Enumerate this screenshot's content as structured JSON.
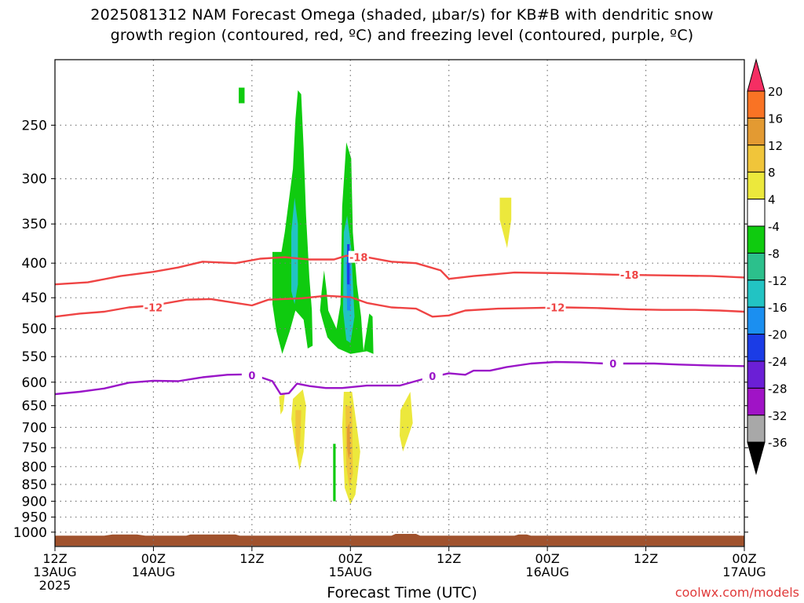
{
  "title_line1": "2025081312 NAM Forecast Omega (shaded, μbar/s) for KB#B with dendritic snow",
  "title_line2": "growth region (contoured, red, ºC) and freezing level (contoured, purple, ºC)",
  "credit": "coolwx.com/models",
  "chart_data": {
    "type": "time-height cross section",
    "title": "2025081312 NAM Forecast Omega (shaded, μbar/s) for KB#B with dendritic snow growth region (contoured, red, ºC) and freezing level (contoured, purple, ºC)",
    "xlabel": "Forecast Time (UTC)",
    "ylabel": "",
    "x_unit": "hours from 2025-08-13 12Z",
    "xlim": [
      0,
      84
    ],
    "ylim": [
      1050,
      200
    ],
    "y_scale": "log-pressure",
    "grid": true,
    "x_ticks": [
      {
        "x": 0,
        "l1": "12Z",
        "l2": "13AUG",
        "l3": "2025"
      },
      {
        "x": 12,
        "l1": "00Z",
        "l2": "14AUG",
        "l3": ""
      },
      {
        "x": 24,
        "l1": "12Z",
        "l2": "",
        "l3": ""
      },
      {
        "x": 36,
        "l1": "00Z",
        "l2": "15AUG",
        "l3": ""
      },
      {
        "x": 48,
        "l1": "12Z",
        "l2": "",
        "l3": ""
      },
      {
        "x": 60,
        "l1": "00Z",
        "l2": "16AUG",
        "l3": ""
      },
      {
        "x": 72,
        "l1": "12Z",
        "l2": "",
        "l3": ""
      },
      {
        "x": 84,
        "l1": "00Z",
        "l2": "17AUG",
        "l3": ""
      }
    ],
    "y_ticks": [
      250,
      300,
      350,
      400,
      450,
      500,
      550,
      600,
      650,
      700,
      750,
      800,
      850,
      900,
      950,
      1000
    ],
    "colorbar": {
      "labels": [
        20,
        16,
        12,
        8,
        4,
        -4,
        -8,
        -12,
        -16,
        -20,
        -24,
        -28,
        -32,
        -36
      ],
      "colors": [
        "#f52e63",
        "#f97324",
        "#e39a32",
        "#f0c53a",
        "#ece83c",
        "#ffffff",
        "#0fcb0f",
        "#2cc08c",
        "#22c3c3",
        "#1b8ff0",
        "#1b3ce6",
        "#6b1fd6",
        "#a013c6",
        "#a8a8a8",
        "#000000"
      ]
    },
    "contours": [
      {
        "name": "",
        "color": "#ef4444",
        "value_label": "-18",
        "points": [
          [
            0,
            430
          ],
          [
            4,
            427
          ],
          [
            8,
            418
          ],
          [
            12,
            412
          ],
          [
            15,
            406
          ],
          [
            18,
            398
          ],
          [
            22,
            400
          ],
          [
            25,
            394
          ],
          [
            28,
            392
          ],
          [
            31,
            395
          ],
          [
            34,
            395
          ],
          [
            35.5,
            390
          ],
          [
            38,
            392
          ],
          [
            41,
            398
          ],
          [
            44,
            400
          ],
          [
            47,
            410
          ],
          [
            48,
            422
          ],
          [
            51,
            418
          ],
          [
            56,
            413
          ],
          [
            62,
            414
          ],
          [
            68,
            416
          ],
          [
            74,
            417
          ],
          [
            80,
            418
          ],
          [
            84,
            420
          ]
        ],
        "labels": [
          [
            37,
            392
          ],
          [
            70,
            416
          ]
        ]
      },
      {
        "name": "",
        "color": "#ef4444",
        "value_label": "-12",
        "points": [
          [
            0,
            480
          ],
          [
            3,
            475
          ],
          [
            6,
            472
          ],
          [
            9,
            465
          ],
          [
            12,
            462
          ],
          [
            16,
            453
          ],
          [
            19,
            452
          ],
          [
            22,
            458
          ],
          [
            24,
            462
          ],
          [
            26,
            453
          ],
          [
            30,
            451
          ],
          [
            33,
            447
          ],
          [
            36,
            449
          ],
          [
            38,
            458
          ],
          [
            41,
            465
          ],
          [
            44,
            467
          ],
          [
            46,
            480
          ],
          [
            48,
            478
          ],
          [
            50,
            470
          ],
          [
            54,
            467
          ],
          [
            58,
            466
          ],
          [
            62,
            465
          ],
          [
            66,
            466
          ],
          [
            70,
            468
          ],
          [
            74,
            469
          ],
          [
            78,
            469
          ],
          [
            81,
            470
          ],
          [
            84,
            472
          ]
        ],
        "labels": [
          [
            12,
            465
          ],
          [
            61,
            465
          ]
        ]
      },
      {
        "name": "",
        "color": "#9a15c8",
        "value_label": "0",
        "points": [
          [
            0,
            625
          ],
          [
            3,
            620
          ],
          [
            6,
            613
          ],
          [
            9,
            601
          ],
          [
            12,
            597
          ],
          [
            15,
            598
          ],
          [
            18,
            590
          ],
          [
            21,
            585
          ],
          [
            24,
            584
          ],
          [
            26.5,
            598
          ],
          [
            27.5,
            625
          ],
          [
            28.5,
            623
          ],
          [
            29.5,
            603
          ],
          [
            31,
            608
          ],
          [
            33,
            612
          ],
          [
            35,
            612
          ],
          [
            38,
            607
          ],
          [
            42,
            607
          ],
          [
            45,
            593
          ],
          [
            48,
            582
          ],
          [
            50,
            585
          ],
          [
            51,
            577
          ],
          [
            53,
            577
          ],
          [
            55,
            570
          ],
          [
            58,
            563
          ],
          [
            61,
            560
          ],
          [
            64,
            561
          ],
          [
            67,
            563
          ],
          [
            70,
            563
          ],
          [
            73,
            563
          ],
          [
            76,
            565
          ],
          [
            80,
            567
          ],
          [
            84,
            568
          ]
        ],
        "labels": [
          [
            24,
            586
          ],
          [
            46,
            588
          ],
          [
            68,
            563
          ]
        ]
      }
    ],
    "omega_regions": [
      {
        "value_range": [
          -8,
          -4
        ],
        "color": "#0fcb0f",
        "points": [
          [
            22.4,
            220
          ],
          [
            23.1,
            220
          ],
          [
            23.1,
            232
          ],
          [
            22.4,
            232
          ]
        ]
      },
      {
        "value_range": [
          -8,
          -4
        ],
        "color": "#0fcb0f",
        "points": [
          [
            26.5,
            385
          ],
          [
            27.6,
            385
          ],
          [
            28,
            360
          ],
          [
            29,
            290
          ],
          [
            29.3,
            245
          ],
          [
            29.6,
            222
          ],
          [
            30,
            225
          ],
          [
            30.3,
            270
          ],
          [
            30.6,
            340
          ],
          [
            31,
            420
          ],
          [
            31.3,
            470
          ],
          [
            31.4,
            530
          ],
          [
            30.8,
            535
          ],
          [
            30.3,
            485
          ],
          [
            29.3,
            470
          ],
          [
            28.6,
            505
          ],
          [
            27.7,
            545
          ],
          [
            27,
            505
          ],
          [
            26.5,
            460
          ]
        ]
      },
      {
        "value_range": [
          -8,
          -4
        ],
        "color": "#0fcb0f",
        "points": [
          [
            32.3,
            470
          ],
          [
            32.5,
            440
          ],
          [
            32.8,
            410
          ],
          [
            33.1,
            440
          ],
          [
            33.3,
            470
          ],
          [
            34.3,
            500
          ],
          [
            34.8,
            460
          ],
          [
            35,
            330
          ],
          [
            35.5,
            265
          ],
          [
            36.1,
            280
          ],
          [
            36.3,
            360
          ],
          [
            36.8,
            430
          ],
          [
            37.3,
            480
          ],
          [
            37.6,
            540
          ],
          [
            38.3,
            475
          ],
          [
            38.7,
            480
          ],
          [
            38.8,
            545
          ],
          [
            38,
            540
          ],
          [
            36,
            545
          ],
          [
            34.5,
            535
          ],
          [
            33.8,
            525
          ],
          [
            33.2,
            515
          ],
          [
            32.6,
            485
          ]
        ]
      },
      {
        "value_range": [
          -16,
          -8
        ],
        "color": "#22c3c3",
        "points": [
          [
            28.8,
            360
          ],
          [
            29.2,
            320
          ],
          [
            29.6,
            350
          ],
          [
            29.6,
            430
          ],
          [
            29.2,
            460
          ],
          [
            28.8,
            440
          ]
        ]
      },
      {
        "value_range": [
          -16,
          -8
        ],
        "color": "#22c3c3",
        "points": [
          [
            35.2,
            360
          ],
          [
            35.6,
            340
          ],
          [
            36.1,
            380
          ],
          [
            36.5,
            480
          ],
          [
            36,
            525
          ],
          [
            35.5,
            520
          ],
          [
            35.1,
            470
          ]
        ]
      },
      {
        "value_range": [
          -20,
          -16
        ],
        "color": "#1b8ff0",
        "points": [
          [
            35.5,
            400
          ],
          [
            35.8,
            385
          ],
          [
            36.1,
            410
          ],
          [
            36,
            470
          ],
          [
            35.6,
            470
          ]
        ]
      },
      {
        "value_range": [
          -24,
          -20
        ],
        "color": "#1b3ce6",
        "points": [
          [
            35.6,
            375
          ],
          [
            35.9,
            375
          ],
          [
            35.9,
            430
          ],
          [
            35.6,
            430
          ]
        ]
      },
      {
        "value_range": [
          -8,
          -4
        ],
        "color": "#0fcb0f",
        "points": [
          [
            33.9,
            740
          ],
          [
            34.2,
            740
          ],
          [
            34.2,
            900
          ],
          [
            33.9,
            900
          ]
        ]
      },
      {
        "value_range": [
          4,
          8
        ],
        "color": "#ece83c",
        "points": [
          [
            54.2,
            320
          ],
          [
            55.6,
            320
          ],
          [
            55.6,
            345
          ],
          [
            55.1,
            380
          ],
          [
            54.2,
            345
          ]
        ]
      },
      {
        "value_range": [
          4,
          8
        ],
        "color": "#ece83c",
        "points": [
          [
            27.3,
            630
          ],
          [
            28,
            625
          ],
          [
            27.8,
            660
          ],
          [
            27.5,
            670
          ]
        ]
      },
      {
        "value_range": [
          4,
          8
        ],
        "color": "#ece83c",
        "points": [
          [
            29,
            635
          ],
          [
            30.2,
            615
          ],
          [
            30.6,
            650
          ],
          [
            30.3,
            760
          ],
          [
            29.8,
            810
          ],
          [
            29.2,
            740
          ],
          [
            28.8,
            680
          ]
        ]
      },
      {
        "value_range": [
          4,
          8
        ],
        "color": "#ece83c",
        "points": [
          [
            35.2,
            620
          ],
          [
            36.2,
            620
          ],
          [
            37.2,
            760
          ],
          [
            36.6,
            880
          ],
          [
            36,
            910
          ],
          [
            35.3,
            860
          ],
          [
            35,
            700
          ]
        ]
      },
      {
        "value_range": [
          4,
          8
        ],
        "color": "#ece83c",
        "points": [
          [
            42.1,
            660
          ],
          [
            43.3,
            620
          ],
          [
            43.6,
            690
          ],
          [
            42.4,
            760
          ],
          [
            42,
            720
          ]
        ]
      },
      {
        "value_range": [
          8,
          12
        ],
        "color": "#f0c53a",
        "points": [
          [
            29.3,
            660
          ],
          [
            30,
            660
          ],
          [
            29.9,
            730
          ],
          [
            29.6,
            780
          ],
          [
            29.3,
            730
          ]
        ]
      },
      {
        "value_range": [
          8,
          12
        ],
        "color": "#f0c53a",
        "points": [
          [
            35.4,
            650
          ],
          [
            36.2,
            650
          ],
          [
            36.3,
            820
          ],
          [
            35.9,
            860
          ],
          [
            35.5,
            800
          ]
        ]
      },
      {
        "value_range": [
          12,
          16
        ],
        "color": "#e39a32",
        "points": [
          [
            35.6,
            700
          ],
          [
            35.9,
            690
          ],
          [
            36,
            760
          ],
          [
            35.8,
            780
          ],
          [
            35.6,
            750
          ]
        ]
      }
    ],
    "terrain": {
      "color": "#a0522d",
      "points": [
        [
          0,
          1012
        ],
        [
          6,
          1012
        ],
        [
          7,
          1008
        ],
        [
          10,
          1008
        ],
        [
          11,
          1012
        ],
        [
          16,
          1012
        ],
        [
          16.5,
          1008
        ],
        [
          22,
          1008
        ],
        [
          22.5,
          1012
        ],
        [
          41,
          1012
        ],
        [
          41.5,
          1006
        ],
        [
          44,
          1006
        ],
        [
          44.5,
          1012
        ],
        [
          56,
          1012
        ],
        [
          56.5,
          1008
        ],
        [
          57.5,
          1008
        ],
        [
          58,
          1012
        ],
        [
          84,
          1012
        ],
        [
          84,
          1048
        ],
        [
          0,
          1048
        ]
      ]
    }
  }
}
